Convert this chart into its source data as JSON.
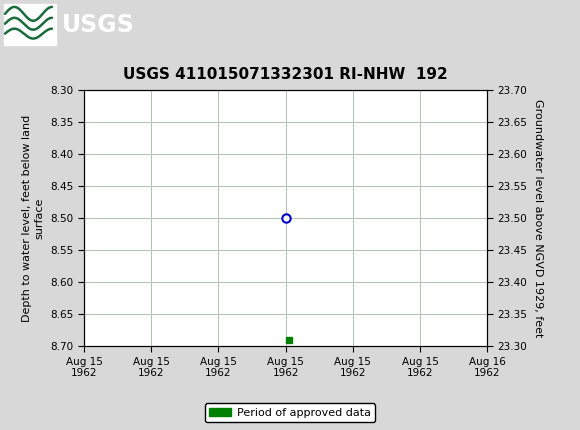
{
  "title": "USGS 411015071332301 RI-NHW  192",
  "header_color": "#1a6b3c",
  "background_color": "#d8d8d8",
  "plot_bg_color": "#ffffff",
  "grid_color": "#b0c4b0",
  "ylabel_left": "Depth to water level, feet below land\nsurface",
  "ylabel_right": "Groundwater level above NGVD 1929, feet",
  "ylim_left_bottom": 8.7,
  "ylim_left_top": 8.3,
  "ylim_right_bottom": 23.3,
  "ylim_right_top": 23.7,
  "yticks_left": [
    8.3,
    8.35,
    8.4,
    8.45,
    8.5,
    8.55,
    8.6,
    8.65,
    8.7
  ],
  "yticks_right": [
    23.7,
    23.65,
    23.6,
    23.55,
    23.5,
    23.45,
    23.4,
    23.35,
    23.3
  ],
  "xlim": [
    0,
    6
  ],
  "xtick_labels": [
    "Aug 15\n1962",
    "Aug 15\n1962",
    "Aug 15\n1962",
    "Aug 15\n1962",
    "Aug 15\n1962",
    "Aug 15\n1962",
    "Aug 16\n1962"
  ],
  "xtick_positions": [
    0,
    1,
    2,
    3,
    4,
    5,
    6
  ],
  "data_point_x": 3.0,
  "data_point_y": 8.5,
  "data_point_color": "#0000cc",
  "green_mark_x": 3.05,
  "green_mark_y": 8.69,
  "green_mark_color": "#008000",
  "legend_label": "Period of approved data",
  "title_fontsize": 11,
  "axis_label_fontsize": 8,
  "tick_fontsize": 7.5,
  "legend_fontsize": 8
}
